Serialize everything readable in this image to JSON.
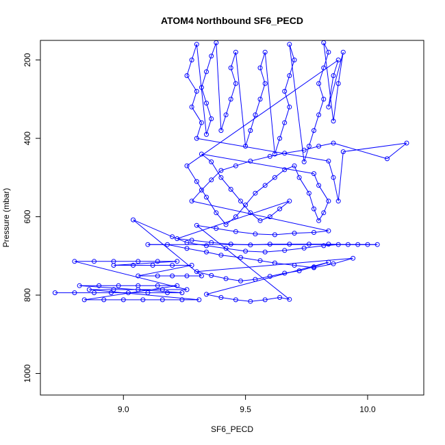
{
  "chart_data": {
    "type": "scatter",
    "title": "ATOM4 Northbound SF6_PECD",
    "xlabel": "SF6_PECD",
    "ylabel": "Pressure (mbar)",
    "xlim": [
      8.66,
      10.23
    ],
    "ylim": [
      1055,
      150
    ],
    "y_inverted": true,
    "x_ticks": [
      9.0,
      9.5,
      10.0
    ],
    "x_tick_labels": [
      "9.0",
      "9.5",
      "10.0"
    ],
    "y_ticks": [
      200,
      400,
      600,
      800,
      1000
    ],
    "y_tick_labels": [
      "200",
      "400",
      "600",
      "800",
      "1000"
    ],
    "grid": false,
    "legend": "none",
    "series_color": "#0000ff",
    "marker": "open-circle",
    "connect_points": true,
    "series": [
      {
        "points": [
          [
            8.72,
            794
          ],
          [
            8.8,
            794
          ],
          [
            8.88,
            794
          ],
          [
            8.95,
            794
          ],
          [
            9.02,
            794
          ],
          [
            9.1,
            794
          ],
          [
            9.18,
            794
          ],
          [
            9.24,
            794
          ],
          [
            8.82,
            776
          ],
          [
            8.9,
            776
          ],
          [
            8.98,
            776
          ],
          [
            9.06,
            776
          ],
          [
            9.14,
            776
          ],
          [
            9.22,
            776
          ],
          [
            8.84,
            812
          ],
          [
            8.92,
            812
          ],
          [
            9.0,
            812
          ],
          [
            9.08,
            812
          ],
          [
            9.16,
            812
          ],
          [
            9.24,
            812
          ],
          [
            9.31,
            812
          ],
          [
            8.86,
            786
          ],
          [
            8.96,
            786
          ],
          [
            9.06,
            786
          ],
          [
            9.16,
            786
          ],
          [
            9.26,
            786
          ],
          [
            8.8,
            714
          ],
          [
            8.88,
            714
          ],
          [
            8.96,
            714
          ],
          [
            9.06,
            714
          ],
          [
            9.14,
            714
          ],
          [
            9.22,
            714
          ],
          [
            8.96,
            724
          ],
          [
            9.04,
            724
          ],
          [
            9.12,
            724
          ],
          [
            9.2,
            724
          ],
          [
            9.28,
            724
          ],
          [
            9.06,
            751
          ],
          [
            9.14,
            751
          ],
          [
            9.2,
            751
          ],
          [
            9.26,
            751
          ],
          [
            9.32,
            751
          ],
          [
            9.04,
            608
          ],
          [
            9.2,
            651
          ],
          [
            9.26,
            666
          ],
          [
            9.34,
            674
          ],
          [
            9.42,
            681
          ],
          [
            9.5,
            688
          ],
          [
            9.58,
            690
          ],
          [
            9.66,
            686
          ],
          [
            9.74,
            680
          ],
          [
            9.82,
            674
          ],
          [
            9.88,
            671
          ],
          [
            9.96,
            671
          ],
          [
            10.04,
            671
          ],
          [
            9.1,
            671
          ],
          [
            9.18,
            671
          ],
          [
            9.26,
            681
          ],
          [
            9.34,
            690
          ],
          [
            9.4,
            698
          ],
          [
            9.48,
            704
          ],
          [
            9.56,
            712
          ],
          [
            9.62,
            718
          ],
          [
            9.7,
            724
          ],
          [
            9.78,
            730
          ],
          [
            9.86,
            720
          ],
          [
            9.94,
            706
          ],
          [
            9.3,
            740
          ],
          [
            9.36,
            750
          ],
          [
            9.42,
            758
          ],
          [
            9.48,
            764
          ],
          [
            9.54,
            760
          ],
          [
            9.6,
            752
          ],
          [
            9.66,
            744
          ],
          [
            9.72,
            738
          ],
          [
            9.78,
            728
          ],
          [
            9.84,
            716
          ],
          [
            9.34,
            798
          ],
          [
            9.4,
            806
          ],
          [
            9.46,
            812
          ],
          [
            9.52,
            816
          ],
          [
            9.58,
            812
          ],
          [
            9.64,
            806
          ],
          [
            9.68,
            811
          ],
          [
            9.3,
            622
          ],
          [
            9.38,
            630
          ],
          [
            9.46,
            638
          ],
          [
            9.54,
            644
          ],
          [
            9.62,
            646
          ],
          [
            9.7,
            642
          ],
          [
            9.78,
            640
          ],
          [
            9.84,
            636
          ],
          [
            9.28,
            560
          ],
          [
            9.32,
            532
          ],
          [
            9.36,
            506
          ],
          [
            9.4,
            482
          ],
          [
            9.46,
            470
          ],
          [
            9.52,
            458
          ],
          [
            9.6,
            446
          ],
          [
            9.66,
            438
          ],
          [
            9.74,
            430
          ],
          [
            9.8,
            420
          ],
          [
            9.86,
            412
          ],
          [
            10.08,
            452
          ],
          [
            10.16,
            412
          ],
          [
            9.9,
            434
          ],
          [
            9.88,
            560
          ],
          [
            9.86,
            500
          ],
          [
            9.84,
            458
          ],
          [
            9.3,
            400
          ],
          [
            9.32,
            360
          ],
          [
            9.28,
            320
          ],
          [
            9.3,
            280
          ],
          [
            9.26,
            240
          ],
          [
            9.28,
            200
          ],
          [
            9.3,
            160
          ],
          [
            9.34,
            390
          ],
          [
            9.36,
            350
          ],
          [
            9.34,
            310
          ],
          [
            9.32,
            270
          ],
          [
            9.34,
            230
          ],
          [
            9.36,
            190
          ],
          [
            9.38,
            156
          ],
          [
            9.4,
            380
          ],
          [
            9.42,
            340
          ],
          [
            9.44,
            300
          ],
          [
            9.46,
            260
          ],
          [
            9.44,
            220
          ],
          [
            9.46,
            180
          ],
          [
            9.5,
            420
          ],
          [
            9.52,
            380
          ],
          [
            9.54,
            340
          ],
          [
            9.56,
            300
          ],
          [
            9.58,
            260
          ],
          [
            9.56,
            220
          ],
          [
            9.58,
            180
          ],
          [
            9.62,
            440
          ],
          [
            9.64,
            400
          ],
          [
            9.66,
            360
          ],
          [
            9.68,
            320
          ],
          [
            9.66,
            280
          ],
          [
            9.68,
            240
          ],
          [
            9.7,
            200
          ],
          [
            9.68,
            160
          ],
          [
            9.74,
            460
          ],
          [
            9.76,
            420
          ],
          [
            9.78,
            380
          ],
          [
            9.8,
            340
          ],
          [
            9.82,
            300
          ],
          [
            9.8,
            260
          ],
          [
            9.82,
            220
          ],
          [
            9.84,
            180
          ],
          [
            9.82,
            156
          ],
          [
            9.86,
            356
          ],
          [
            9.88,
            260
          ],
          [
            9.9,
            180
          ],
          [
            9.84,
            320
          ],
          [
            9.86,
            240
          ],
          [
            9.88,
            200
          ],
          [
            9.26,
            470
          ],
          [
            9.3,
            510
          ],
          [
            9.34,
            550
          ],
          [
            9.38,
            590
          ],
          [
            9.42,
            620
          ],
          [
            9.46,
            600
          ],
          [
            9.5,
            570
          ],
          [
            9.54,
            540
          ],
          [
            9.58,
            520
          ],
          [
            9.62,
            500
          ],
          [
            9.66,
            480
          ],
          [
            9.7,
            470
          ],
          [
            9.72,
            500
          ],
          [
            9.76,
            540
          ],
          [
            9.78,
            580
          ],
          [
            9.8,
            610
          ],
          [
            9.82,
            590
          ],
          [
            9.84,
            560
          ],
          [
            9.8,
            520
          ],
          [
            9.78,
            490
          ],
          [
            9.32,
            440
          ],
          [
            9.36,
            460
          ],
          [
            9.4,
            500
          ],
          [
            9.44,
            530
          ],
          [
            9.48,
            560
          ],
          [
            9.52,
            590
          ],
          [
            9.56,
            610
          ],
          [
            9.6,
            600
          ],
          [
            9.64,
            580
          ],
          [
            9.68,
            560
          ],
          [
            9.22,
            656
          ],
          [
            9.28,
            660
          ],
          [
            9.36,
            666
          ],
          [
            9.44,
            670
          ],
          [
            9.52,
            672
          ],
          [
            9.6,
            670
          ],
          [
            9.68,
            670
          ],
          [
            9.76,
            670
          ],
          [
            9.84,
            670
          ],
          [
            9.92,
            671
          ],
          [
            10.0,
            671
          ]
        ]
      }
    ]
  }
}
